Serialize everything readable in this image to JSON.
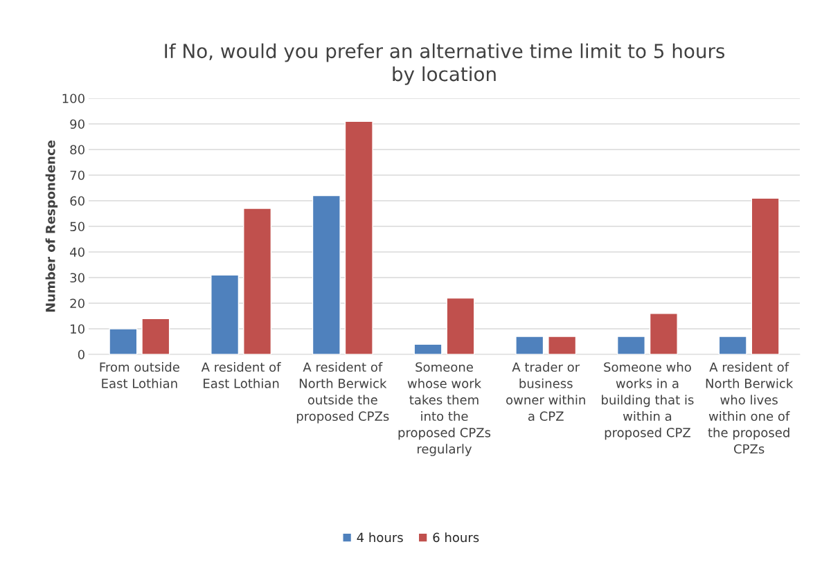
{
  "chart_data": {
    "type": "bar",
    "title": "If No, would you prefer an alternative time limit to 5 hours\nby location",
    "ylabel": "Number of Respondence",
    "categories": [
      "From outside\nEast Lothian",
      "A resident of\nEast Lothian",
      "A resident of\nNorth Berwick\noutside the\nproposed CPZs",
      "Someone\nwhose work\ntakes them\ninto the\nproposed CPZs\nregularly",
      "A trader or\nbusiness\nowner within\na CPZ",
      "Someone who\nworks in a\nbuilding that is\nwithin a\nproposed CPZ",
      "A resident of\nNorth Berwick\nwho lives\nwithin one of\nthe proposed\nCPZs"
    ],
    "series": [
      {
        "name": "4 hours",
        "color": "#4f81bd",
        "values": [
          10,
          31,
          62,
          4,
          7,
          7,
          7
        ]
      },
      {
        "name": "6 hours",
        "color": "#c0504d",
        "values": [
          14,
          57,
          91,
          22,
          7,
          16,
          61
        ]
      }
    ],
    "ylim": [
      0,
      100
    ],
    "yticks": [
      0,
      10,
      20,
      30,
      40,
      50,
      60,
      70,
      80,
      90,
      100
    ],
    "grid": "y",
    "legend": "bottom"
  }
}
